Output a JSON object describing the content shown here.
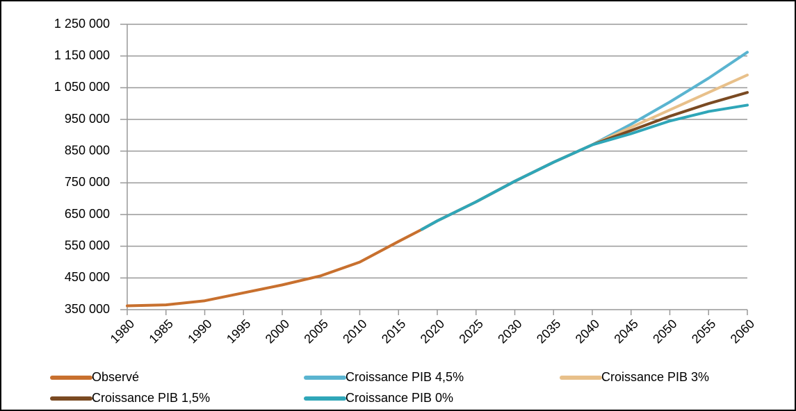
{
  "chart_data": {
    "type": "line",
    "x": [
      1980,
      1985,
      1990,
      1995,
      2000,
      2005,
      2010,
      2015,
      2018,
      2020,
      2025,
      2030,
      2035,
      2040,
      2045,
      2050,
      2055,
      2060
    ],
    "series": [
      {
        "name": "Observé",
        "color": "#c8702e",
        "values": [
          362000,
          365000,
          378000,
          403000,
          428000,
          457000,
          500000,
          565000,
          603000,
          null,
          null,
          null,
          null,
          null,
          null,
          null,
          null,
          null
        ]
      },
      {
        "name": "Croissance PIB 4,5%",
        "color": "#5ab4d0",
        "values": [
          null,
          null,
          null,
          null,
          null,
          null,
          null,
          null,
          603000,
          630000,
          690000,
          755000,
          815000,
          870000,
          935000,
          1005000,
          1080000,
          1162000
        ]
      },
      {
        "name": "Croissance PIB 3%",
        "color": "#e8c08a",
        "values": [
          null,
          null,
          null,
          null,
          null,
          null,
          null,
          null,
          603000,
          630000,
          690000,
          755000,
          815000,
          870000,
          925000,
          980000,
          1035000,
          1090000
        ]
      },
      {
        "name": "Croissance PIB 1,5%",
        "color": "#7a4a22",
        "values": [
          null,
          null,
          null,
          null,
          null,
          null,
          null,
          null,
          603000,
          630000,
          690000,
          755000,
          815000,
          870000,
          915000,
          960000,
          1000000,
          1035000
        ]
      },
      {
        "name": "Croissance PIB 0%",
        "color": "#2fa6b8",
        "values": [
          null,
          null,
          null,
          null,
          null,
          null,
          null,
          null,
          603000,
          630000,
          690000,
          755000,
          815000,
          870000,
          905000,
          945000,
          975000,
          995000
        ]
      }
    ],
    "xlim": [
      1980,
      2060
    ],
    "xticks": [
      1980,
      1985,
      1990,
      1995,
      2000,
      2005,
      2010,
      2015,
      2020,
      2025,
      2030,
      2035,
      2040,
      2045,
      2050,
      2055,
      2060
    ],
    "ylim": [
      350000,
      1250000
    ],
    "yticks": [
      {
        "value": 350000,
        "label": "350 000"
      },
      {
        "value": 450000,
        "label": "450 000"
      },
      {
        "value": 550000,
        "label": "550 000"
      },
      {
        "value": 650000,
        "label": "650 000"
      },
      {
        "value": 750000,
        "label": "750 000"
      },
      {
        "value": 850000,
        "label": "850 000"
      },
      {
        "value": 950000,
        "label": "950 000"
      },
      {
        "value": 1050000,
        "label": "1 050 000"
      },
      {
        "value": 1150000,
        "label": "1 150 000"
      },
      {
        "value": 1250000,
        "label": "1 250 000"
      }
    ],
    "grid": true
  }
}
